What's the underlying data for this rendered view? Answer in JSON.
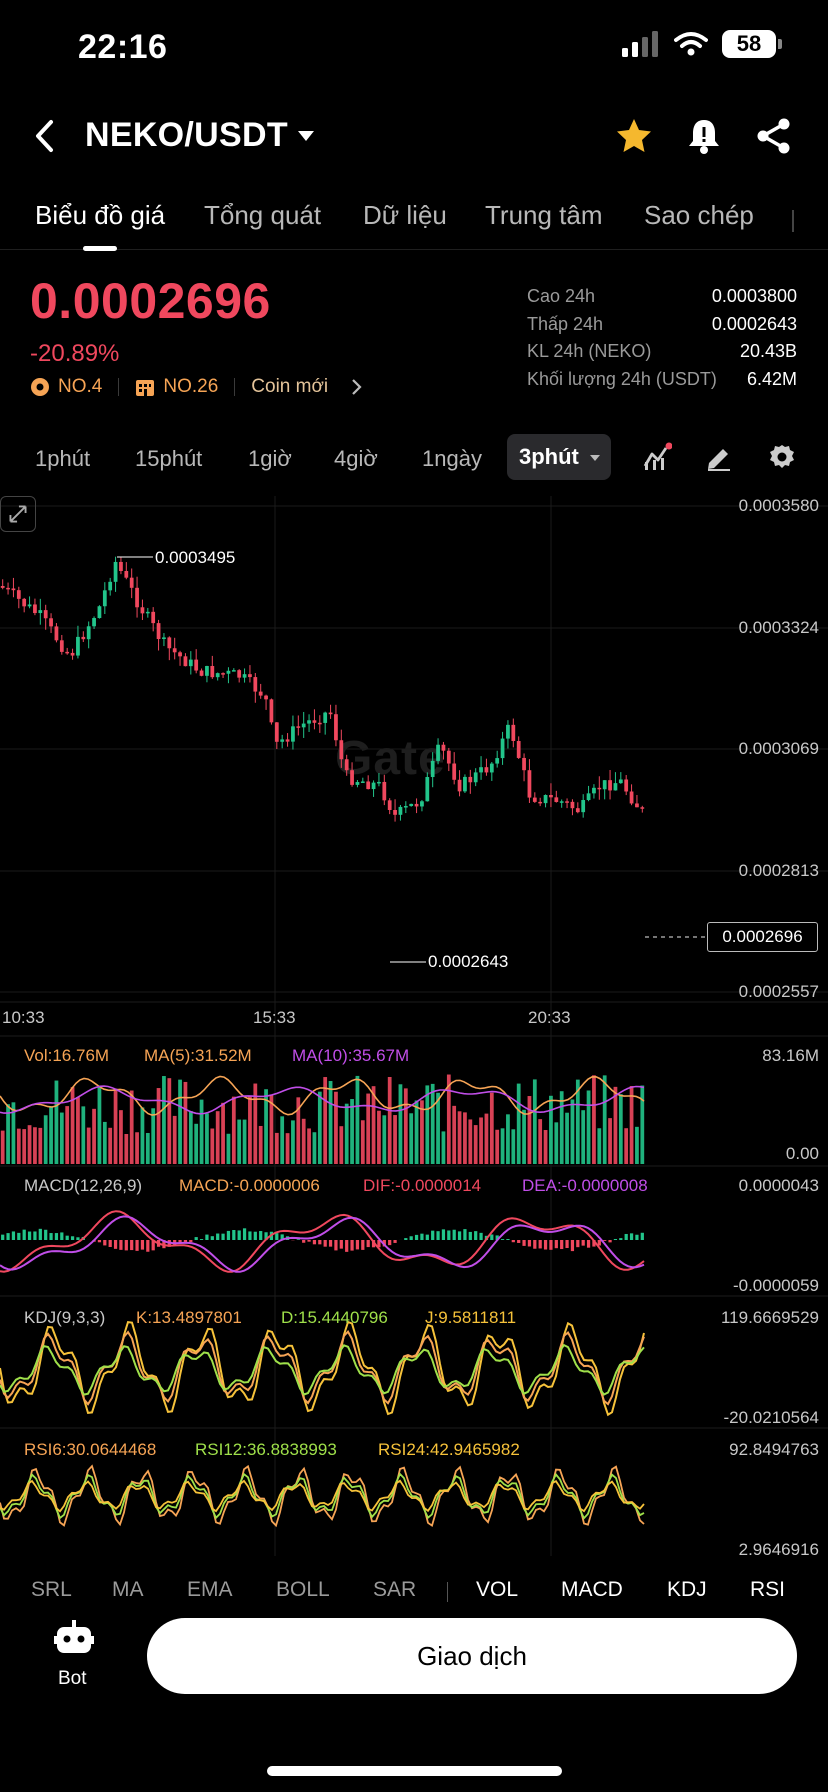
{
  "status": {
    "time": "22:16",
    "battery": "58"
  },
  "header": {
    "pair": "NEKO/USDT"
  },
  "tabs": [
    {
      "label": "Biểu đồ giá"
    },
    {
      "label": "Tổng quát"
    },
    {
      "label": "Dữ liệu"
    },
    {
      "label": "Trung tâm"
    },
    {
      "label": "Sao chép"
    }
  ],
  "ticker": {
    "price": "0.0002696",
    "change": "-20.89%",
    "rank1": "NO.4",
    "rank2": "NO.26",
    "coin_new": "Coin mới",
    "stats": [
      {
        "label": "Cao 24h",
        "value": "0.0003800"
      },
      {
        "label": "Thấp 24h",
        "value": "0.0002643"
      },
      {
        "label": "KL 24h (NEKO)",
        "value": "20.43B"
      },
      {
        "label": "Khối lượng 24h (USDT)",
        "value": "6.42M"
      }
    ]
  },
  "timeframes": {
    "items": [
      "1phút",
      "15phút",
      "1giờ",
      "4giờ",
      "1ngày"
    ],
    "active": "3phút"
  },
  "chart": {
    "watermark": "Gate",
    "price_axis": [
      "0.0003580",
      "0.0003324",
      "0.0003069",
      "0.0002813",
      "0.0002557"
    ],
    "time_axis": [
      "10:33",
      "15:33",
      "20:33"
    ],
    "high_marker": "0.0003495",
    "low_marker": "0.0002643",
    "current_price": "0.0002696"
  },
  "indicators": {
    "vol": {
      "vol": "Vol:16.76M",
      "ma5": "MA(5):31.52M",
      "ma10": "MA(10):35.67M",
      "max": "83.16M",
      "min": "0.00"
    },
    "macd": {
      "name": "MACD(12,26,9)",
      "macd": "MACD:-0.0000006",
      "dif": "DIF:-0.0000014",
      "dea": "DEA:-0.0000008",
      "max": "0.0000043",
      "min": "-0.0000059"
    },
    "kdj": {
      "name": "KDJ(9,3,3)",
      "k": "K:13.4897801",
      "d": "D:15.4440796",
      "j": "J:9.5811811",
      "max": "119.6669529",
      "min": "-20.0210564"
    },
    "rsi": {
      "rsi6": "RSI6:30.0644468",
      "rsi12": "RSI12:36.8838993",
      "rsi24": "RSI24:42.9465982",
      "max": "92.8494763",
      "min": "2.9646916"
    }
  },
  "indicator_tabs": [
    {
      "label": "SRL",
      "on": false
    },
    {
      "label": "MA",
      "on": false
    },
    {
      "label": "EMA",
      "on": false
    },
    {
      "label": "BOLL",
      "on": false
    },
    {
      "label": "SAR",
      "on": false
    },
    {
      "label": "VOL",
      "on": true
    },
    {
      "label": "MACD",
      "on": true
    },
    {
      "label": "KDJ",
      "on": true
    },
    {
      "label": "RSI",
      "on": true
    }
  ],
  "bottom": {
    "bot_label": "Bot",
    "trade_label": "Giao dịch"
  },
  "colors": {
    "up": "#22c58b",
    "down": "#f0485e",
    "accent": "#f5b82e"
  }
}
